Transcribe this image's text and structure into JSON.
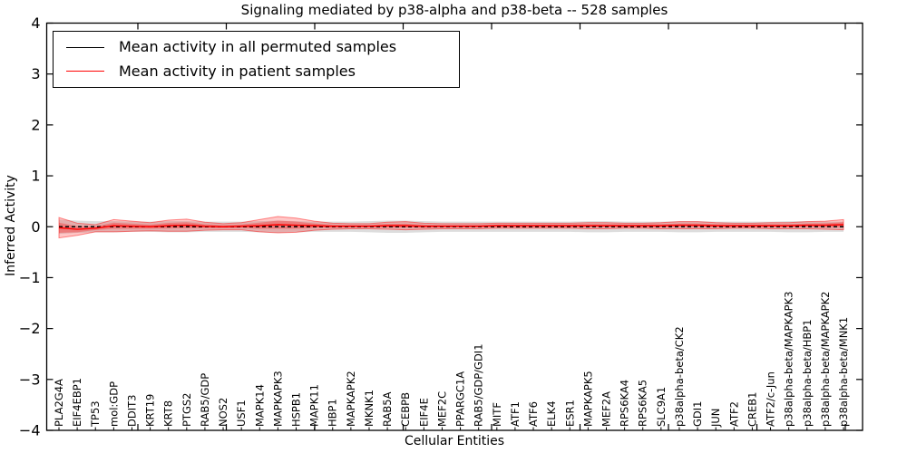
{
  "figure": {
    "title": "Signaling mediated by p38-alpha and p38-beta -- 528 samples",
    "xlabel": "Cellular Entities",
    "ylabel": "Inferred Activity"
  },
  "legend": {
    "position": "upper left",
    "entries": [
      {
        "label": "Mean activity in all permuted samples",
        "color": "#000000",
        "style": "solid"
      },
      {
        "label": "Mean activity in patient samples",
        "color": "#ff0000",
        "style": "solid"
      }
    ]
  },
  "colors": {
    "permuted_band": "#d9d9d9",
    "patient_band": "#ff0000",
    "permuted_line": "#000000",
    "patient_line": "#ff0000",
    "frame": "#000000"
  },
  "chart_data": {
    "type": "line",
    "title": "Signaling mediated by p38-alpha and p38-beta -- 528 samples",
    "xlabel": "Cellular Entities",
    "ylabel": "Inferred Activity",
    "ylim": [
      -4,
      4
    ],
    "yticks": [
      4,
      3,
      2,
      1,
      0,
      -1,
      -2,
      -3,
      -4
    ],
    "grid": false,
    "legend_position": "upper left",
    "categories": [
      "PLA2G4A",
      "EIF4EBP1",
      "TP53",
      "mol:GDP",
      "DDIT3",
      "KRT19",
      "KRT8",
      "PTGS2",
      "RAB5/GDP",
      "NOS2",
      "USF1",
      "MAPK14",
      "MAPKAPK3",
      "HSPB1",
      "MAPK11",
      "HBP1",
      "MAPKAPK2",
      "MKNK1",
      "RAB5A",
      "CEBPB",
      "EIF4E",
      "MEF2C",
      "PPARGC1A",
      "RAB5/GDP/GDI1",
      "MITF",
      "ATF1",
      "ATF6",
      "ELK4",
      "ESR1",
      "MAPKAPK5",
      "MEF2A",
      "RPS6KA4",
      "RPS6KA5",
      "SLC9A1",
      "p38alpha-beta/CK2",
      "GDI1",
      "JUN",
      "ATF2",
      "CREB1",
      "ATF2/c-Jun",
      "p38alpha-beta/MAPKAPK3",
      "p38alpha-beta/HBP1",
      "p38alpha-beta/MAPKAPK2",
      "p38alpha-beta/MNK1"
    ],
    "series": [
      {
        "name": "Mean activity in all permuted samples",
        "color": "#000000",
        "line_style": "dashed",
        "values": [
          0,
          0,
          0,
          0,
          0,
          0,
          0,
          0,
          0,
          0,
          0,
          0,
          0,
          0,
          0,
          0,
          0,
          0,
          0,
          0,
          0,
          0,
          0,
          0,
          0,
          0,
          0,
          0,
          0,
          0,
          0,
          0,
          0,
          0,
          0,
          0,
          0,
          0,
          0,
          0,
          0,
          0,
          0,
          0
        ]
      },
      {
        "name": "Mean activity in patient samples",
        "color": "#ff0000",
        "line_style": "solid",
        "values": [
          -0.02,
          -0.05,
          -0.03,
          0.02,
          0.01,
          0.0,
          0.02,
          0.03,
          0.01,
          0.0,
          0.01,
          0.02,
          0.04,
          0.03,
          0.02,
          0.01,
          0.01,
          0.01,
          0.02,
          0.02,
          0.01,
          0.01,
          0.01,
          0.01,
          0.02,
          0.02,
          0.02,
          0.02,
          0.02,
          0.02,
          0.02,
          0.02,
          0.02,
          0.02,
          0.03,
          0.03,
          0.02,
          0.02,
          0.02,
          0.02,
          0.02,
          0.03,
          0.03,
          0.04
        ]
      }
    ],
    "bands": [
      {
        "name": "permuted samples spread",
        "color": "#d9d9d9",
        "center_series": 0,
        "halfwidths": [
          0.14,
          0.12,
          0.11,
          0.11,
          0.1,
          0.1,
          0.11,
          0.11,
          0.1,
          0.1,
          0.1,
          0.11,
          0.12,
          0.11,
          0.1,
          0.1,
          0.1,
          0.11,
          0.12,
          0.12,
          0.11,
          0.1,
          0.1,
          0.1,
          0.1,
          0.1,
          0.1,
          0.1,
          0.1,
          0.11,
          0.11,
          0.1,
          0.1,
          0.1,
          0.11,
          0.11,
          0.1,
          0.1,
          0.1,
          0.1,
          0.11,
          0.11,
          0.1,
          0.1
        ]
      },
      {
        "name": "patient samples spread",
        "color": "#ff0000",
        "center_series": 1,
        "halfwidths": [
          0.2,
          0.12,
          0.07,
          0.12,
          0.1,
          0.08,
          0.11,
          0.12,
          0.08,
          0.06,
          0.07,
          0.12,
          0.16,
          0.14,
          0.09,
          0.06,
          0.05,
          0.05,
          0.07,
          0.08,
          0.06,
          0.05,
          0.05,
          0.05,
          0.05,
          0.05,
          0.05,
          0.05,
          0.05,
          0.06,
          0.06,
          0.05,
          0.05,
          0.06,
          0.07,
          0.07,
          0.06,
          0.05,
          0.05,
          0.06,
          0.06,
          0.07,
          0.08,
          0.1
        ]
      }
    ]
  }
}
